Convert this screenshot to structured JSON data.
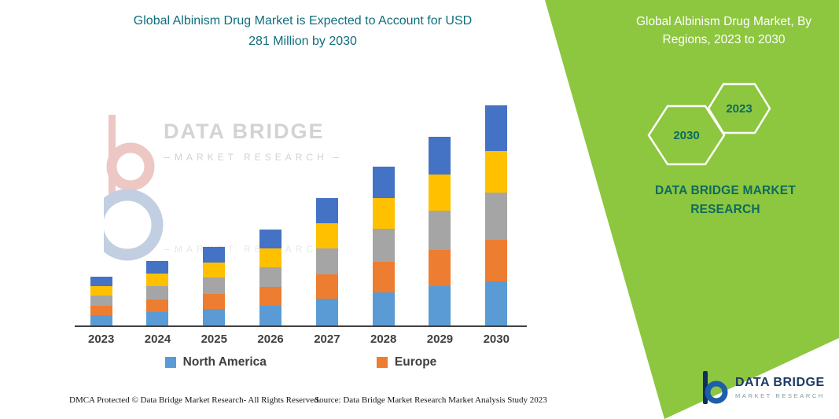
{
  "page": {
    "title_line1": "Global Albinism Drug Market is Expected to Account for USD",
    "title_line2": "281 Million by 2030"
  },
  "right_panel": {
    "heading": "Global Albinism Drug Market, By Regions, 2023 to 2030",
    "hexagon_left_label": "2030",
    "hexagon_right_label": "2023",
    "brand_text": "DATA BRIDGE MARKET RESEARCH",
    "background_color": "#8DC63F",
    "heading_color": "#ffffff",
    "accent_color": "#0C6B60"
  },
  "watermark": {
    "brand": "DATA BRIDGE",
    "sub": "MARKET RESEARCH"
  },
  "legend": [
    {
      "label": "North America",
      "color": "#5B9BD5"
    },
    {
      "label": "Europe",
      "color": "#ED7D31"
    }
  ],
  "footer": {
    "dmca": "DMCA Protected © Data Bridge Market Research-  All Rights Reserved.",
    "source": "Source: Data Bridge Market Research  Market Analysis Study 2023",
    "logo_brand": "DATA BRIDGE",
    "logo_sub": "MARKET RESEARCH"
  },
  "chart_data": {
    "type": "bar",
    "stacked": true,
    "title": "Global Albinism Drug Market is Expected to Account for USD 281 Million by 2030",
    "unit": "USD Million",
    "values_are_estimated": true,
    "categories": [
      "2023",
      "2024",
      "2025",
      "2026",
      "2027",
      "2028",
      "2029",
      "2030"
    ],
    "totals": [
      63,
      83,
      101,
      123,
      163,
      203,
      241,
      281
    ],
    "series": [
      {
        "name": "North America",
        "color": "#5B9BD5",
        "values": [
          14,
          18,
          22,
          26,
          35,
          43,
          51,
          57
        ]
      },
      {
        "name": "Europe",
        "color": "#ED7D31",
        "values": [
          12,
          16,
          19,
          24,
          31,
          39,
          46,
          53
        ]
      },
      {
        "name": "Region 3 (gray, unlabeled)",
        "color": "#A5A5A5",
        "values": [
          13,
          17,
          21,
          25,
          33,
          42,
          50,
          60
        ]
      },
      {
        "name": "Region 4 (yellow, unlabeled)",
        "color": "#FFC000",
        "values": [
          12,
          16,
          19,
          24,
          32,
          39,
          46,
          53
        ]
      },
      {
        "name": "Region 5 (dark blue, unlabeled)",
        "color": "#4472C4",
        "values": [
          12,
          16,
          20,
          24,
          32,
          40,
          48,
          58
        ]
      }
    ],
    "legend_visible": [
      "North America",
      "Europe"
    ],
    "legend_position": "bottom",
    "gridlines": false,
    "y_axis_labels_visible": false
  }
}
